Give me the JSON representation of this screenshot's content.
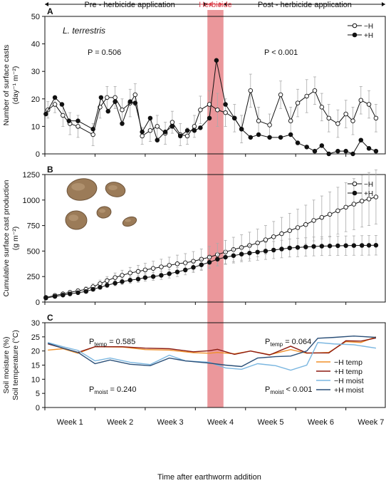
{
  "figure": {
    "x_label": "Time after earthworm addition",
    "weeks": [
      "Week 1",
      "Week 2",
      "Week 3",
      "Week 4",
      "Week 5",
      "Week 6",
      "Week 7"
    ],
    "periods": {
      "pre": "Pre - herbicide application",
      "herbicide": "Herbicide",
      "post": "Post - herbicide application"
    },
    "herbicide_window": [
      16.2,
      17.8
    ],
    "colors": {
      "herbicide_band": "#e8858a",
      "herbicide_text": "#d9414b",
      "minus_temp": "#f0902a",
      "plus_temp": "#8b1a10",
      "minus_moist": "#7ab6e0",
      "plus_moist": "#2a4f78"
    }
  },
  "chart_data": [
    {
      "panel": "A",
      "type": "line",
      "annotation": "L. terrestris",
      "ylabel": "Number of surface casts",
      "yunit": "(day⁻¹ m⁻²)",
      "ylim": [
        0,
        50
      ],
      "yticks": [
        0,
        10,
        20,
        30,
        40,
        50
      ],
      "stats": [
        "P = 0.506",
        "P < 0.001"
      ],
      "legend": [
        "−H",
        "+H"
      ],
      "series": [
        {
          "name": "−H",
          "marker": "open",
          "x": [
            0.3,
            1.0,
            1.8,
            2.5,
            3.3,
            4.8,
            5.5,
            6.2,
            7.0,
            7.7,
            8.5,
            9.0,
            9.7,
            10.5,
            11.2,
            12.0,
            12.7,
            13.5,
            14.2,
            14.9,
            15.5,
            16.4,
            17.2,
            18.0,
            18.9,
            19.6,
            20.5,
            21.3,
            22.4,
            23.5,
            24.5,
            25.2,
            26.1,
            26.9,
            27.6,
            28.3,
            29.2,
            30.0,
            30.7,
            31.5,
            32.3,
            33.0
          ],
          "y": [
            16,
            18,
            14,
            11,
            10,
            7,
            17,
            20.5,
            20.5,
            16,
            18.5,
            21.5,
            6.5,
            8.5,
            10,
            7.5,
            11.5,
            7,
            6.5,
            10,
            16,
            18,
            16,
            15,
            13,
            9,
            23,
            12,
            10.5,
            21.5,
            12,
            18.5,
            21,
            23,
            17,
            13,
            11,
            14.5,
            12,
            19.5,
            18,
            13
          ],
          "err": [
            3,
            3,
            4,
            4,
            4,
            4,
            4,
            4,
            4,
            4,
            5,
            4,
            3,
            4,
            4,
            4,
            4,
            4,
            3,
            4,
            5,
            5,
            6,
            5,
            5,
            5,
            6,
            5,
            4,
            5,
            5,
            5,
            6,
            5,
            5,
            5,
            5,
            5,
            5,
            5,
            5,
            5
          ]
        },
        {
          "name": "+H",
          "marker": "filled",
          "x": [
            0.1,
            1.0,
            1.7,
            2.4,
            3.3,
            4.8,
            5.6,
            6.3,
            7.0,
            7.7,
            8.5,
            9.0,
            9.7,
            10.5,
            11.2,
            12.0,
            12.7,
            13.5,
            14.2,
            14.9,
            15.5,
            16.4,
            17.1,
            18.0,
            18.9,
            19.6,
            20.5,
            21.3,
            22.4,
            23.5,
            24.5,
            25.2,
            26.1,
            26.9,
            27.6,
            28.3,
            29.2,
            30.0,
            30.7,
            31.5,
            32.3,
            33.0
          ],
          "y": [
            14.5,
            20.5,
            18,
            12,
            12,
            9,
            20.5,
            15.5,
            19,
            11,
            19,
            18.5,
            8,
            13,
            5,
            8,
            10,
            6.5,
            8.5,
            8.5,
            9.5,
            13,
            34,
            18,
            13,
            9,
            6,
            7,
            6,
            6,
            7,
            4,
            2.5,
            1,
            3,
            0,
            1,
            1,
            0,
            5,
            2,
            1
          ]
        }
      ]
    },
    {
      "panel": "B",
      "type": "line",
      "ylabel": "Cumulative surface cast production",
      "yunit": "(g m⁻²)",
      "ylim": [
        0,
        1250
      ],
      "yticks": [
        0,
        250,
        500,
        750,
        1000,
        1250
      ],
      "legend": [
        "−H",
        "+H"
      ],
      "series": [
        {
          "name": "−H",
          "marker": "open",
          "x": [
            0.1,
            1.0,
            1.8,
            2.5,
            3.3,
            4.1,
            4.8,
            5.5,
            6.2,
            7.0,
            7.7,
            8.5,
            9.3,
            10.0,
            10.8,
            11.6,
            12.4,
            13.2,
            14.0,
            14.8,
            15.6,
            16.4,
            17.2,
            18.0,
            18.8,
            19.6,
            20.4,
            21.2,
            22.0,
            22.8,
            23.6,
            24.4,
            25.2,
            26.0,
            26.8,
            27.6,
            28.4,
            29.2,
            30.0,
            30.8,
            31.6,
            32.3,
            33.0
          ],
          "x_unit": "days",
          "y": [
            45,
            65,
            80,
            95,
            110,
            125,
            150,
            180,
            210,
            240,
            262,
            285,
            300,
            315,
            330,
            345,
            360,
            375,
            385,
            400,
            420,
            440,
            465,
            490,
            515,
            535,
            555,
            580,
            610,
            640,
            670,
            700,
            730,
            760,
            800,
            830,
            860,
            895,
            930,
            960,
            990,
            1010,
            1030
          ],
          "err": [
            8,
            12,
            15,
            18,
            20,
            25,
            30,
            35,
            40,
            45,
            50,
            55,
            60,
            65,
            70,
            75,
            80,
            85,
            90,
            95,
            100,
            105,
            110,
            115,
            120,
            125,
            130,
            135,
            140,
            150,
            160,
            170,
            180,
            190,
            200,
            210,
            220,
            230,
            240,
            250,
            255,
            260,
            265
          ]
        },
        {
          "name": "+H",
          "marker": "filled",
          "x": [
            0.1,
            1.0,
            1.8,
            2.5,
            3.3,
            4.1,
            4.8,
            5.5,
            6.2,
            7.0,
            7.7,
            8.5,
            9.3,
            10.0,
            10.8,
            11.6,
            12.4,
            13.2,
            14.0,
            14.8,
            15.6,
            16.4,
            17.2,
            18.0,
            18.8,
            19.6,
            20.4,
            21.2,
            22.0,
            22.8,
            23.6,
            24.4,
            25.2,
            26.0,
            26.8,
            27.6,
            28.4,
            29.2,
            30.0,
            30.8,
            31.6,
            32.3,
            33.0
          ],
          "y": [
            40,
            55,
            68,
            80,
            92,
            104,
            125,
            145,
            165,
            185,
            200,
            215,
            225,
            240,
            250,
            262,
            278,
            295,
            315,
            340,
            365,
            390,
            420,
            440,
            455,
            470,
            480,
            490,
            500,
            510,
            520,
            530,
            535,
            540,
            545,
            548,
            550,
            552,
            553,
            554,
            555,
            556,
            557
          ],
          "err": [
            6,
            8,
            10,
            12,
            14,
            16,
            18,
            20,
            22,
            25,
            28,
            30,
            32,
            35,
            38,
            40,
            42,
            45,
            48,
            50,
            55,
            60,
            65,
            70,
            72,
            75,
            78,
            80,
            82,
            84,
            86,
            88,
            90,
            90,
            92,
            92,
            94,
            94,
            95,
            95,
            96,
            96,
            96
          ]
        }
      ]
    },
    {
      "panel": "C",
      "type": "line",
      "ylabel": "Soil moisture (%)",
      "ylabel2": "Soil temperature (°C)",
      "ylim": [
        0,
        30
      ],
      "yticks": [
        0,
        5,
        10,
        15,
        20,
        25,
        30
      ],
      "stats": [
        {
          "base": "P",
          "sub": "temp",
          "text": " = 0.585"
        },
        {
          "base": "P",
          "sub": "temp",
          "text": " = 0.064"
        },
        {
          "base": "P",
          "sub": "moist",
          "text": " = 0.240"
        },
        {
          "base": "P",
          "sub": "moist",
          "text": " < 0.001"
        }
      ],
      "series": [
        {
          "name": "−H temp",
          "key": "minus_temp",
          "x": [
            0.3,
            1.8,
            3.3,
            5.0,
            7.7,
            10.0,
            12.4,
            14.8,
            16.4,
            17.2,
            18.9,
            20.5,
            22.4,
            24.5,
            26.1,
            28.3,
            30.0,
            31.5,
            33.0
          ],
          "y": [
            20.3,
            20.8,
            19.2,
            21.5,
            21.4,
            20.5,
            20.3,
            19.4,
            19.2,
            19.5,
            19.0,
            20.0,
            18.7,
            20.5,
            19.2,
            19.5,
            23.3,
            23.0,
            25.0
          ]
        },
        {
          "name": "+H temp",
          "key": "plus_temp",
          "x": [
            0.3,
            1.8,
            3.3,
            5.0,
            7.7,
            10.0,
            12.4,
            14.8,
            16.4,
            17.2,
            18.9,
            20.5,
            22.4,
            24.5,
            26.1,
            28.3,
            30.0,
            31.5,
            33.0
          ],
          "y": [
            22.5,
            21.0,
            19.5,
            21.5,
            21.5,
            21.0,
            20.8,
            19.7,
            20.1,
            20.6,
            18.8,
            20.0,
            18.6,
            21.7,
            19.3,
            19.3,
            23.6,
            23.5,
            24.6
          ]
        },
        {
          "name": "−H moist",
          "key": "minus_moist",
          "x": [
            0.3,
            1.8,
            3.3,
            5.0,
            6.5,
            8.5,
            10.5,
            12.4,
            14.0,
            16.4,
            18.0,
            19.6,
            21.2,
            23.0,
            24.5,
            26.1,
            27.2,
            28.8,
            30.8,
            33.0
          ],
          "y": [
            23.0,
            21.5,
            20.2,
            16.5,
            17.5,
            16.0,
            15.2,
            18.5,
            16.5,
            16.0,
            14.0,
            13.5,
            15.5,
            14.8,
            13.2,
            15.0,
            23.0,
            22.5,
            22.2,
            21.0
          ]
        },
        {
          "name": "+H moist",
          "key": "plus_moist",
          "x": [
            0.3,
            1.8,
            3.3,
            5.0,
            6.5,
            8.5,
            10.5,
            12.4,
            14.0,
            16.4,
            18.0,
            19.6,
            21.2,
            23.0,
            24.5,
            26.1,
            27.2,
            28.8,
            30.8,
            33.0
          ],
          "y": [
            22.7,
            21.0,
            19.5,
            15.5,
            16.8,
            15.3,
            14.8,
            17.5,
            16.5,
            15.7,
            15.0,
            14.5,
            17.5,
            18.0,
            18.2,
            20.0,
            24.5,
            24.8,
            25.3,
            24.8
          ]
        }
      ]
    }
  ]
}
